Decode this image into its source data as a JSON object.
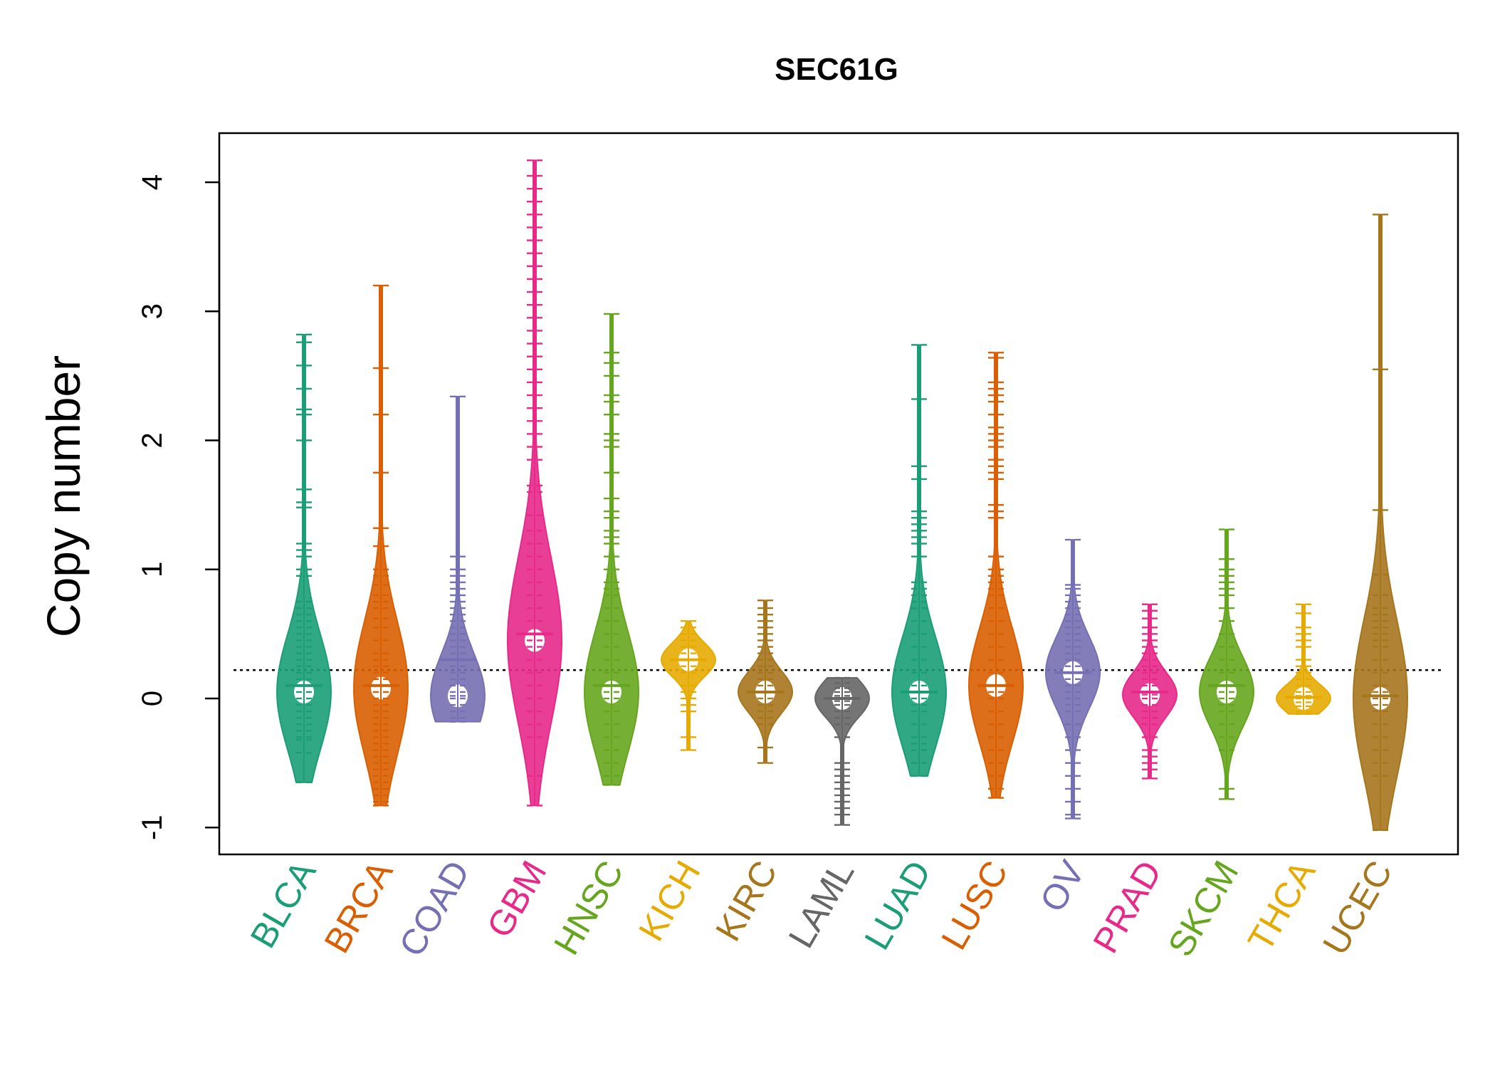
{
  "chart_data": {
    "type": "beanplot",
    "title": "SEC61G",
    "xlabel": "",
    "ylabel": "Copy number",
    "ylim": [
      -1.2,
      4.4
    ],
    "y_ticks": [
      -1,
      0,
      1,
      2,
      3,
      4
    ],
    "reference_line": 0.22,
    "categories": [
      "BLCA",
      "BRCA",
      "COAD",
      "GBM",
      "HNSC",
      "KICH",
      "KIRC",
      "LAML",
      "LUAD",
      "LUSC",
      "OV",
      "PRAD",
      "SKCM",
      "THCA",
      "UCEC"
    ],
    "colors": [
      "#1b9e77",
      "#d95f02",
      "#7570b3",
      "#e7298a",
      "#66a61e",
      "#e6ab02",
      "#a6761d",
      "#666666",
      "#1b9e77",
      "#d95f02",
      "#7570b3",
      "#e7298a",
      "#66a61e",
      "#e6ab02",
      "#a6761d"
    ],
    "series": [
      {
        "name": "BLCA",
        "min": -0.65,
        "max": 2.82,
        "median": 0.1,
        "mode": 0.05,
        "samples": [
          2.82,
          2.76,
          2.58,
          2.4,
          2.24,
          2.2,
          2.0,
          1.62,
          1.52,
          1.48,
          1.2,
          1.15,
          1.1,
          1.0,
          0.95,
          0.75,
          0.7,
          0.65,
          0.6,
          0.55,
          0.5,
          0.45,
          0.4,
          0.35,
          0.3,
          0.25,
          0.2,
          0.15,
          0.1,
          0.05,
          0.0,
          -0.05,
          -0.1,
          -0.15,
          -0.2,
          -0.25,
          -0.3,
          -0.32,
          -0.42,
          -0.65
        ]
      },
      {
        "name": "BRCA",
        "min": -0.83,
        "max": 3.2,
        "median": 0.1,
        "mode": 0.08,
        "samples": [
          3.2,
          2.56,
          2.2,
          1.75,
          1.32,
          1.18,
          1.0,
          0.95,
          0.88,
          0.8,
          0.75,
          0.7,
          0.62,
          0.55,
          0.45,
          0.35,
          0.3,
          0.25,
          0.2,
          0.15,
          0.1,
          0.05,
          0.0,
          -0.05,
          -0.1,
          -0.15,
          -0.2,
          -0.25,
          -0.3,
          -0.35,
          -0.4,
          -0.45,
          -0.5,
          -0.55,
          -0.6,
          -0.65,
          -0.7,
          -0.75,
          -0.8,
          -0.83
        ]
      },
      {
        "name": "COAD",
        "min": -0.18,
        "max": 2.34,
        "median": 0.3,
        "mode": 0.02,
        "samples": [
          2.34,
          1.1,
          1.0,
          0.95,
          0.9,
          0.85,
          0.8,
          0.75,
          0.7,
          0.65,
          0.6,
          0.55,
          0.5,
          0.45,
          0.4,
          0.35,
          0.3,
          0.25,
          0.2,
          0.15,
          0.1,
          0.05,
          0.02,
          0.0,
          -0.05,
          -0.1,
          -0.15,
          -0.18
        ]
      },
      {
        "name": "GBM",
        "min": -0.83,
        "max": 4.17,
        "median": 0.5,
        "mode": 0.45,
        "samples": [
          4.17,
          4.05,
          3.95,
          3.85,
          3.75,
          3.65,
          3.55,
          3.45,
          3.35,
          3.25,
          3.15,
          3.05,
          2.95,
          2.85,
          2.75,
          2.65,
          2.55,
          2.45,
          2.35,
          2.25,
          2.15,
          2.05,
          1.95,
          1.85,
          1.65,
          1.6,
          1.42,
          1.3,
          1.2,
          1.1,
          1.0,
          0.9,
          0.8,
          0.7,
          0.6,
          0.5,
          0.45,
          0.4,
          0.3,
          0.2,
          0.1,
          0.0,
          -0.1,
          -0.2,
          -0.3,
          -0.6,
          -0.83
        ]
      },
      {
        "name": "HNSC",
        "min": -0.67,
        "max": 2.98,
        "median": 0.1,
        "mode": 0.05,
        "samples": [
          2.98,
          2.68,
          2.6,
          2.5,
          2.35,
          2.3,
          2.2,
          2.05,
          2.0,
          1.95,
          1.75,
          1.55,
          1.45,
          1.4,
          1.3,
          1.25,
          1.2,
          1.1,
          1.0,
          0.9,
          0.85,
          0.8,
          0.7,
          0.6,
          0.5,
          0.4,
          0.3,
          0.2,
          0.1,
          0.05,
          0.0,
          -0.1,
          -0.2,
          -0.3,
          -0.4,
          -0.5,
          -0.6,
          -0.67
        ]
      },
      {
        "name": "KICH",
        "min": -0.4,
        "max": 0.6,
        "median": 0.3,
        "mode": 0.3,
        "samples": [
          0.6,
          0.55,
          0.5,
          0.45,
          0.4,
          0.35,
          0.3,
          0.25,
          0.2,
          0.1,
          0.05,
          0.0,
          -0.05,
          -0.1,
          -0.3,
          -0.4
        ]
      },
      {
        "name": "KIRC",
        "min": -0.5,
        "max": 0.76,
        "median": 0.05,
        "mode": 0.05,
        "samples": [
          0.76,
          0.7,
          0.65,
          0.6,
          0.55,
          0.5,
          0.45,
          0.4,
          0.35,
          0.3,
          0.25,
          0.2,
          0.15,
          0.1,
          0.05,
          0.0,
          -0.05,
          -0.1,
          -0.15,
          -0.2,
          -0.38,
          -0.5
        ]
      },
      {
        "name": "LAML",
        "min": -0.98,
        "max": 0.16,
        "median": 0.0,
        "mode": 0.0,
        "samples": [
          0.16,
          0.12,
          0.08,
          0.05,
          0.02,
          0.0,
          -0.02,
          -0.05,
          -0.1,
          -0.15,
          -0.2,
          -0.3,
          -0.5,
          -0.55,
          -0.6,
          -0.65,
          -0.7,
          -0.75,
          -0.8,
          -0.85,
          -0.9,
          -0.98
        ]
      },
      {
        "name": "LUAD",
        "min": -0.6,
        "max": 2.74,
        "median": 0.05,
        "mode": 0.05,
        "samples": [
          2.74,
          2.32,
          1.8,
          1.7,
          1.45,
          1.4,
          1.35,
          1.3,
          1.25,
          1.2,
          1.1,
          0.9,
          0.85,
          0.8,
          0.75,
          0.7,
          0.6,
          0.5,
          0.4,
          0.3,
          0.2,
          0.1,
          0.05,
          0.0,
          -0.05,
          -0.1,
          -0.2,
          -0.3,
          -0.35,
          -0.4,
          -0.5,
          -0.6
        ]
      },
      {
        "name": "LUSC",
        "min": -0.77,
        "max": 2.68,
        "median": 0.1,
        "mode": 0.1,
        "samples": [
          2.68,
          2.64,
          2.45,
          2.4,
          2.35,
          2.3,
          2.2,
          2.1,
          2.05,
          2.0,
          1.95,
          1.85,
          1.8,
          1.75,
          1.7,
          1.5,
          1.45,
          1.4,
          1.1,
          1.0,
          0.95,
          0.9,
          0.85,
          0.8,
          0.7,
          0.6,
          0.5,
          0.4,
          0.3,
          0.2,
          0.1,
          0.05,
          0.0,
          -0.1,
          -0.2,
          -0.3,
          -0.4,
          -0.5,
          -0.6,
          -0.7,
          -0.77
        ]
      },
      {
        "name": "OV",
        "min": -0.93,
        "max": 1.23,
        "median": 0.2,
        "mode": 0.2,
        "samples": [
          1.23,
          0.88,
          0.85,
          0.8,
          0.75,
          0.7,
          0.65,
          0.6,
          0.55,
          0.5,
          0.45,
          0.4,
          0.35,
          0.3,
          0.25,
          0.2,
          0.15,
          0.1,
          0.05,
          0.0,
          -0.05,
          -0.1,
          -0.2,
          -0.3,
          -0.4,
          -0.5,
          -0.6,
          -0.7,
          -0.8,
          -0.9,
          -0.93
        ]
      },
      {
        "name": "PRAD",
        "min": -0.62,
        "max": 0.73,
        "median": 0.05,
        "mode": 0.03,
        "samples": [
          0.73,
          0.68,
          0.62,
          0.55,
          0.5,
          0.45,
          0.4,
          0.35,
          0.3,
          0.25,
          0.2,
          0.15,
          0.1,
          0.05,
          0.03,
          0.0,
          -0.05,
          -0.1,
          -0.15,
          -0.2,
          -0.3,
          -0.4,
          -0.45,
          -0.5,
          -0.55,
          -0.62
        ]
      },
      {
        "name": "SKCM",
        "min": -0.78,
        "max": 1.31,
        "median": 0.1,
        "mode": 0.05,
        "samples": [
          1.31,
          1.08,
          1.0,
          0.95,
          0.9,
          0.85,
          0.8,
          0.7,
          0.6,
          0.5,
          0.4,
          0.3,
          0.2,
          0.1,
          0.05,
          0.0,
          -0.05,
          -0.1,
          -0.2,
          -0.3,
          -0.4,
          -0.7,
          -0.78
        ]
      },
      {
        "name": "THCA",
        "min": -0.12,
        "max": 0.73,
        "median": 0.01,
        "mode": 0.0,
        "samples": [
          0.73,
          0.66,
          0.55,
          0.5,
          0.45,
          0.4,
          0.3,
          0.25,
          0.2,
          0.15,
          0.1,
          0.05,
          0.02,
          0.0,
          -0.03,
          -0.06,
          -0.1,
          -0.12
        ]
      },
      {
        "name": "UCEC",
        "min": -1.02,
        "max": 3.75,
        "median": 0.02,
        "mode": 0.0,
        "samples": [
          3.75,
          2.55,
          1.46,
          0.96,
          0.8,
          0.7,
          0.65,
          0.6,
          0.55,
          0.5,
          0.45,
          0.4,
          0.3,
          0.2,
          0.1,
          0.05,
          0.0,
          -0.05,
          -0.1,
          -0.2,
          -0.3,
          -0.4,
          -0.5,
          -0.6,
          -1.02
        ]
      }
    ]
  }
}
